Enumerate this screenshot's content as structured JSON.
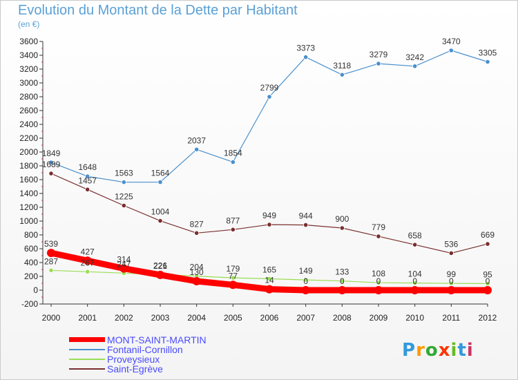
{
  "title": "Evolution du Montant de la Dette par Habitant",
  "subtitle": "(en €)",
  "logo": {
    "text": "Proxiti",
    "colors": [
      "#3399dd",
      "#ff9900",
      "#33aa33",
      "#ff3300",
      "#66bb22",
      "#3399dd",
      "#cc3366"
    ]
  },
  "chart_data": {
    "type": "line",
    "x": [
      "2000",
      "2001",
      "2002",
      "2003",
      "2004",
      "2005",
      "2006",
      "2007",
      "2008",
      "2009",
      "2010",
      "2011",
      "2012"
    ],
    "ylim": [
      -200,
      3600
    ],
    "yticks": [
      "-200",
      "0",
      "200",
      "400",
      "600",
      "800",
      "1000",
      "1200",
      "1400",
      "1600",
      "1800",
      "2000",
      "2200",
      "2400",
      "2600",
      "2800",
      "3000",
      "3200",
      "3400",
      "3600"
    ],
    "grid": false,
    "legend_position": "bottom-left",
    "series": [
      {
        "name": "MONT-SAINT-MARTIN",
        "color": "#ff0000",
        "values": [
          539,
          427,
          314,
          221,
          130,
          77,
          14,
          0,
          0,
          0,
          0,
          0,
          0
        ],
        "labels": [
          "539",
          "427",
          "314",
          "221",
          "130",
          "77",
          "14",
          "0",
          "0",
          "0",
          "0",
          "0",
          "0"
        ]
      },
      {
        "name": "Fontanil-Cornillon",
        "color": "#4a8fcc",
        "values": [
          1849,
          1648,
          1563,
          1564,
          2037,
          1854,
          2799,
          3373,
          3118,
          3279,
          3242,
          3470,
          3305
        ],
        "labels": [
          "1849",
          "1648",
          "1563",
          "1564",
          "2037",
          "1854",
          "2799",
          "3373",
          "3118",
          "3279",
          "3242",
          "3470",
          "3305"
        ]
      },
      {
        "name": "Proveysieux",
        "color": "#99dd55",
        "values": [
          287,
          267,
          247,
          226,
          204,
          179,
          165,
          149,
          133,
          108,
          104,
          99,
          95
        ],
        "labels": [
          "287",
          "267",
          "247",
          "226",
          "204",
          "179",
          "165",
          "149",
          "133",
          "108",
          "104",
          "99",
          "95"
        ]
      },
      {
        "name": "Saint-Egrève",
        "color": "#7a2e2e",
        "values": [
          1689,
          1457,
          1225,
          1004,
          827,
          877,
          949,
          944,
          900,
          779,
          658,
          536,
          669
        ],
        "labels": [
          "1689",
          "1457",
          "1225",
          "1004",
          "827",
          "877",
          "949",
          "944",
          "900",
          "779",
          "658",
          "536",
          "669"
        ]
      }
    ]
  }
}
